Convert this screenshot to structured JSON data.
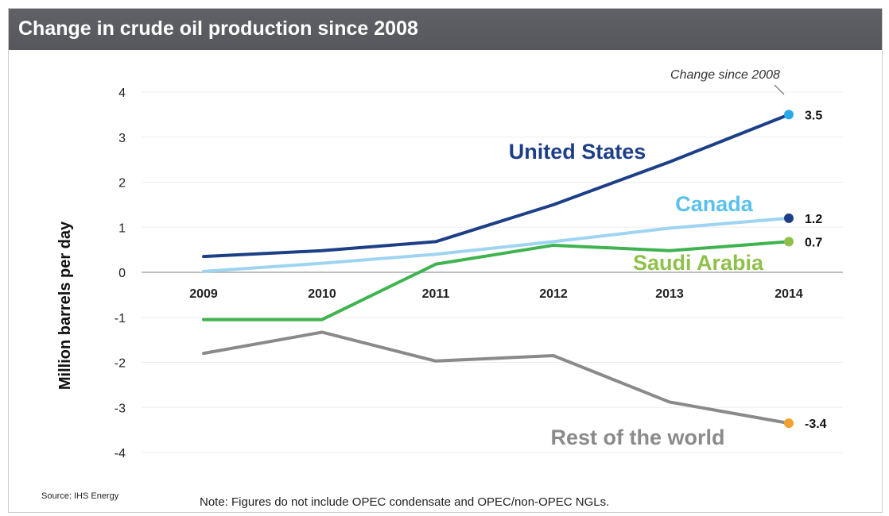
{
  "chart_data": {
    "type": "line",
    "title": "Change in crude oil production since 2008",
    "ylabel": "Million barrels per day",
    "xlabel": "",
    "ylim": [
      -4,
      4
    ],
    "yticks": [
      4,
      3,
      2,
      1,
      0,
      -1,
      -2,
      -3,
      -4
    ],
    "x": [
      "2009",
      "2010",
      "2011",
      "2012",
      "2013",
      "2014"
    ],
    "grid": true,
    "series": [
      {
        "name": "United States",
        "color": "#1c3f87",
        "values": [
          0.35,
          0.48,
          0.68,
          1.5,
          2.45,
          3.5
        ],
        "end_label": "3.5",
        "end_marker_color": "#2aa9e8",
        "label_color": "#1c3f87"
      },
      {
        "name": "Canada",
        "color": "#9ed4f2",
        "values": [
          0.02,
          0.2,
          0.4,
          0.68,
          0.98,
          1.2
        ],
        "end_label": "1.2",
        "end_marker_color": "#1c3f87",
        "label_color": "#5ac1ee"
      },
      {
        "name": "Saudi Arabia",
        "color": "#3fb34f",
        "values": [
          -1.05,
          -1.05,
          0.18,
          0.6,
          0.48,
          0.68
        ],
        "end_label": "0.7",
        "end_marker_color": "#8fc04a",
        "label_color": "#8fc04a"
      },
      {
        "name": "Rest of the world",
        "color": "#8a8a8a",
        "values": [
          -1.8,
          -1.33,
          -1.97,
          -1.85,
          -2.88,
          -3.35
        ],
        "end_label": "-3.4",
        "end_marker_color": "#f2a12e",
        "label_color": "#8a8a8a"
      }
    ],
    "annotation": "Change since 2008"
  },
  "source": "Source: IHS Energy",
  "note": "Note: Figures do not include OPEC condensate and OPEC/non-OPEC NGLs."
}
